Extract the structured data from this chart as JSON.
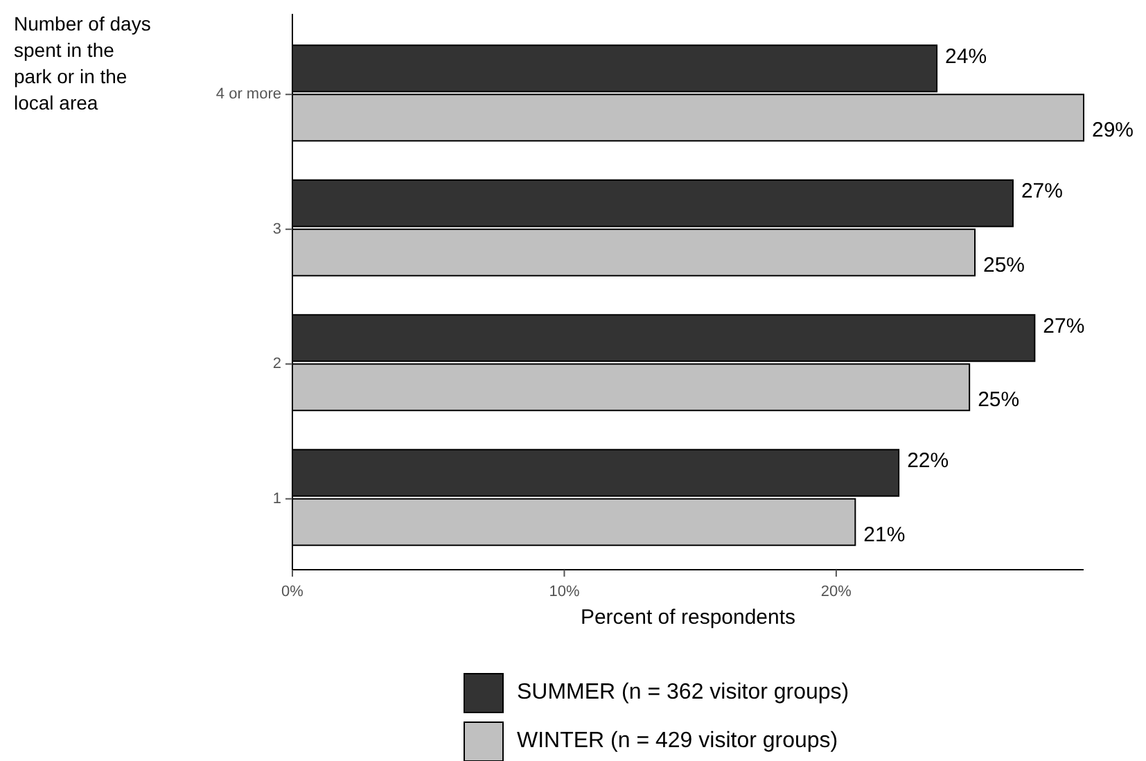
{
  "chart_data": {
    "type": "bar",
    "orientation": "horizontal",
    "ylabel": "Number of days spent in the park or in the local area",
    "xlabel": "Percent of respondents",
    "categories": [
      "4 or more",
      "3",
      "2",
      "1"
    ],
    "series": [
      {
        "name": "SUMMER (n = 362 visitor groups)",
        "color": "#333333",
        "values": [
          23.7,
          26.5,
          27.3,
          22.3
        ],
        "value_labels": [
          "24%",
          "27%",
          "27%",
          "22%"
        ]
      },
      {
        "name": "WINTER (n = 429 visitor groups)",
        "color": "#c0c0c0",
        "values": [
          29.1,
          25.1,
          24.9,
          20.7
        ],
        "value_labels": [
          "29%",
          "25%",
          "25%",
          "21%"
        ]
      }
    ],
    "xlim": [
      0,
      29.1
    ],
    "xticks": [
      {
        "value": 0,
        "label": "0%"
      },
      {
        "value": 10,
        "label": "10%"
      },
      {
        "value": 20,
        "label": "20%"
      }
    ],
    "grid": false,
    "legend": "bottom"
  }
}
